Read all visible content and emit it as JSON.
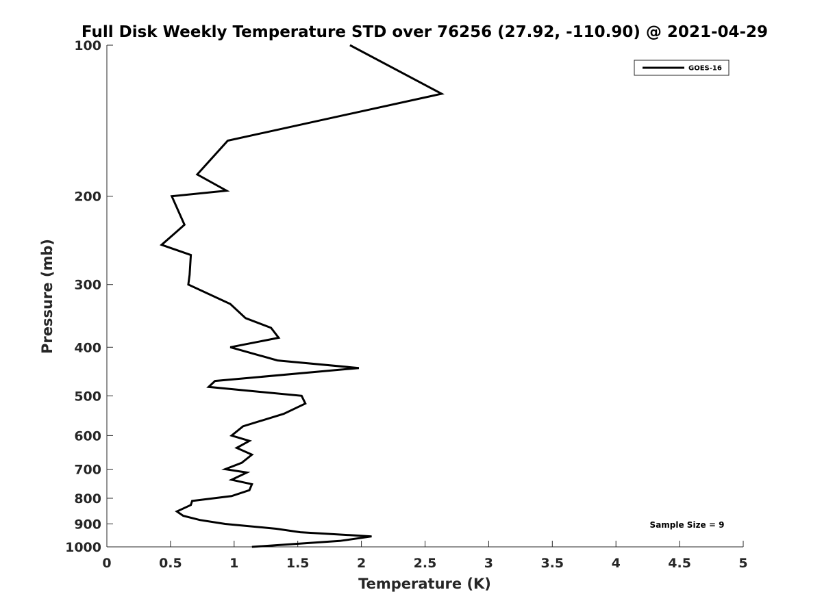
{
  "chart_data": {
    "type": "line",
    "title": "Full Disk Weekly Temperature STD over 76256 (27.92, -110.90) @ 2021-04-29",
    "xlabel": "Temperature (K)",
    "ylabel": "Pressure (mb)",
    "xlim": [
      0,
      5
    ],
    "ylim": [
      100,
      1000
    ],
    "y_scale": "log",
    "y_reversed": true,
    "grid": false,
    "legend_position": "top-right",
    "x_ticks": [
      "0",
      "0.5",
      "1",
      "1.5",
      "2",
      "2.5",
      "3",
      "3.5",
      "4",
      "4.5",
      "5"
    ],
    "y_ticks": [
      "100",
      "200",
      "300",
      "400",
      "500",
      "600",
      "700",
      "800",
      "900",
      "1000"
    ],
    "series": [
      {
        "name": "GOES-16",
        "color": "#000000",
        "points": [
          [
            1.91,
            100
          ],
          [
            2.63,
            125
          ],
          [
            0.95,
            155
          ],
          [
            0.71,
            181
          ],
          [
            0.94,
            195
          ],
          [
            0.51,
            200
          ],
          [
            0.61,
            228
          ],
          [
            0.43,
            250
          ],
          [
            0.66,
            262
          ],
          [
            0.65,
            287
          ],
          [
            0.64,
            300
          ],
          [
            0.97,
            328
          ],
          [
            1.09,
            350
          ],
          [
            1.29,
            366
          ],
          [
            1.35,
            383
          ],
          [
            0.97,
            400
          ],
          [
            1.34,
            425
          ],
          [
            1.98,
            440
          ],
          [
            0.85,
            467
          ],
          [
            0.8,
            480
          ],
          [
            1.53,
            500
          ],
          [
            1.56,
            518
          ],
          [
            1.39,
            543
          ],
          [
            1.07,
            575
          ],
          [
            0.98,
            600
          ],
          [
            1.12,
            615
          ],
          [
            1.02,
            635
          ],
          [
            1.14,
            655
          ],
          [
            1.06,
            680
          ],
          [
            0.93,
            700
          ],
          [
            1.1,
            711
          ],
          [
            0.98,
            735
          ],
          [
            1.14,
            750
          ],
          [
            1.12,
            771
          ],
          [
            0.98,
            792
          ],
          [
            0.67,
            810
          ],
          [
            0.66,
            825
          ],
          [
            0.55,
            850
          ],
          [
            0.6,
            867
          ],
          [
            0.73,
            884
          ],
          [
            0.93,
            900
          ],
          [
            1.33,
            920
          ],
          [
            1.52,
            935
          ],
          [
            2.08,
            953
          ],
          [
            1.83,
            973
          ],
          [
            1.14,
            1000
          ]
        ]
      }
    ],
    "annotation": "Sample Size = 9"
  }
}
